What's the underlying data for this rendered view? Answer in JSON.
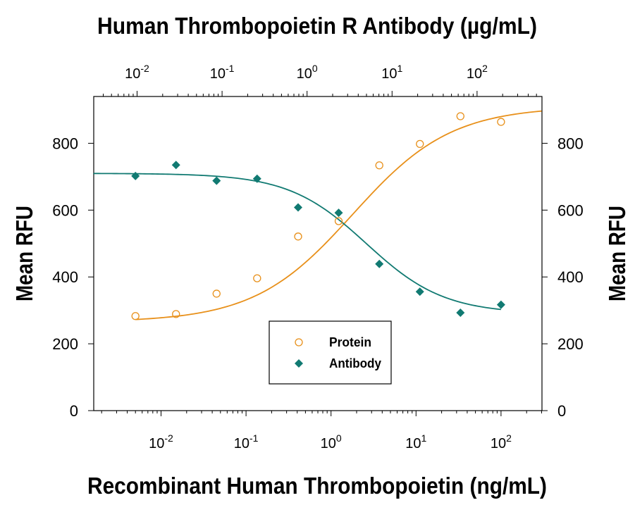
{
  "chart_data": {
    "type": "scatter",
    "title": "",
    "top_axis": {
      "label": "Human Thrombopoietin R Antibody (µg/mL)",
      "scale": "log",
      "ticks": [
        {
          "base": "10",
          "exp": "-2"
        },
        {
          "base": "10",
          "exp": "-1"
        },
        {
          "base": "10",
          "exp": "0"
        },
        {
          "base": "10",
          "exp": "1"
        },
        {
          "base": "10",
          "exp": "2"
        }
      ]
    },
    "bottom_axis": {
      "label": "Recombinant Human Thrombopoietin (ng/mL)",
      "scale": "log",
      "xlim": [
        0.0015,
        300
      ],
      "ticks": [
        {
          "base": "10",
          "exp": "-2",
          "value": 0.01
        },
        {
          "base": "10",
          "exp": "-1",
          "value": 0.1
        },
        {
          "base": "10",
          "exp": "0",
          "value": 1
        },
        {
          "base": "10",
          "exp": "1",
          "value": 10
        },
        {
          "base": "10",
          "exp": "2",
          "value": 100
        }
      ]
    },
    "left_axis": {
      "label": "Mean RFU",
      "ylim": [
        0,
        940
      ],
      "ticks": [
        "0",
        "200",
        "400",
        "600",
        "800"
      ],
      "tick_values": [
        0,
        200,
        400,
        600,
        800
      ]
    },
    "right_axis": {
      "label": "Mean RFU",
      "ticks": [
        "0",
        "200",
        "400",
        "600",
        "800"
      ],
      "tick_values": [
        0,
        200,
        400,
        600,
        800
      ]
    },
    "legend": {
      "placement": "bottom-center",
      "entries": [
        "Protein",
        "Antibody"
      ]
    },
    "series": [
      {
        "name": "Protein",
        "marker": "open-circle",
        "color": "#e8901a",
        "x": [
          0.005,
          0.015,
          0.045,
          0.135,
          0.41,
          1.23,
          3.7,
          11.1,
          33.3,
          100
        ],
        "y": [
          283,
          289,
          350,
          396,
          521,
          567,
          734,
          798,
          881,
          864
        ],
        "fit": {
          "bottom": 265,
          "top": 910,
          "ec50": 1.8,
          "hill": 0.75,
          "x_range": [
            0.005,
            300
          ]
        }
      },
      {
        "name": "Antibody",
        "marker": "filled-diamond",
        "color": "#117a72",
        "x": [
          0.005,
          0.015,
          0.045,
          0.135,
          0.41,
          1.23,
          3.7,
          11.1,
          33.3,
          100
        ],
        "y": [
          702,
          735,
          688,
          694,
          608,
          592,
          439,
          356,
          293,
          317
        ],
        "fit": {
          "bottom": 290,
          "top": 710,
          "ec50": 2.6,
          "hill": 0.95,
          "x_range": [
            0.0015,
            100
          ]
        }
      }
    ]
  }
}
